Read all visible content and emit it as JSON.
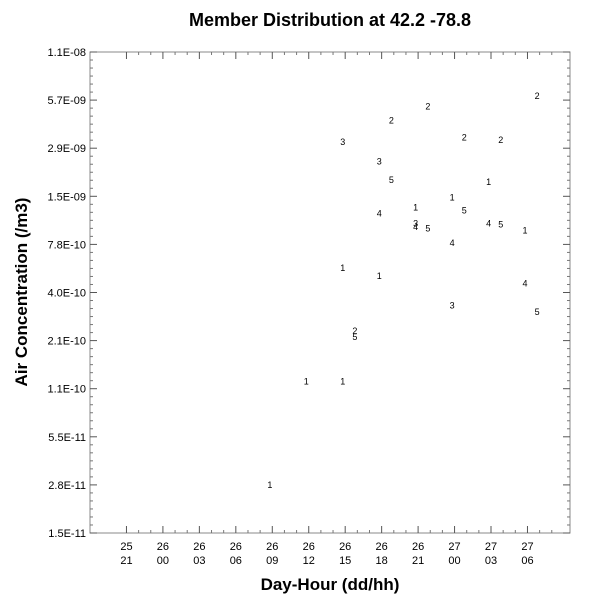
{
  "chart_data": {
    "type": "scatter",
    "title": "Member Distribution at  42.2  -78.8",
    "xlabel": "Day-Hour (dd/hh)",
    "ylabel": "Air Concentration (/m3)",
    "y_scale": "log",
    "ylim": [
      1.5e-11,
      1.1e-08
    ],
    "y_ticks": [
      "1.1E-08",
      "5.7E-09",
      "2.9E-09",
      "1.5E-09",
      "7.8E-10",
      "4.0E-10",
      "2.1E-10",
      "1.1E-10",
      "5.5E-11",
      "2.8E-11",
      "1.5E-11"
    ],
    "x_ticks": [
      {
        "day": "25",
        "hour": "21"
      },
      {
        "day": "26",
        "hour": "00"
      },
      {
        "day": "26",
        "hour": "03"
      },
      {
        "day": "26",
        "hour": "06"
      },
      {
        "day": "26",
        "hour": "09"
      },
      {
        "day": "26",
        "hour": "12"
      },
      {
        "day": "26",
        "hour": "15"
      },
      {
        "day": "26",
        "hour": "18"
      },
      {
        "day": "26",
        "hour": "21"
      },
      {
        "day": "27",
        "hour": "00"
      },
      {
        "day": "27",
        "hour": "03"
      },
      {
        "day": "27",
        "hour": "06"
      }
    ],
    "xlim_hours": [
      -3,
      36.5
    ],
    "grid": false,
    "points": [
      {
        "member": "1",
        "hour": 11.8,
        "value": 2.9e-11
      },
      {
        "member": "1",
        "hour": 14.8,
        "value": 1.2e-10
      },
      {
        "member": "1",
        "hour": 17.8,
        "value": 1.2e-10
      },
      {
        "member": "1",
        "hour": 17.8,
        "value": 5.7e-10
      },
      {
        "member": "1",
        "hour": 20.8,
        "value": 5.1e-10
      },
      {
        "member": "1",
        "hour": 23.8,
        "value": 1.3e-09
      },
      {
        "member": "1",
        "hour": 26.8,
        "value": 1.5e-09
      },
      {
        "member": "1",
        "hour": 29.8,
        "value": 1.85e-09
      },
      {
        "member": "1",
        "hour": 32.8,
        "value": 9.5e-10
      },
      {
        "member": "2",
        "hour": 18.8,
        "value": 2.4e-10
      },
      {
        "member": "2",
        "hour": 21.8,
        "value": 4.3e-09
      },
      {
        "member": "2",
        "hour": 24.8,
        "value": 5.2e-09
      },
      {
        "member": "2",
        "hour": 27.8,
        "value": 3.4e-09
      },
      {
        "member": "2",
        "hour": 30.8,
        "value": 3.3e-09
      },
      {
        "member": "2",
        "hour": 33.8,
        "value": 6e-09
      },
      {
        "member": "3",
        "hour": 17.8,
        "value": 3.2e-09
      },
      {
        "member": "3",
        "hour": 20.8,
        "value": 2.45e-09
      },
      {
        "member": "3",
        "hour": 23.8,
        "value": 1.05e-09
      },
      {
        "member": "3",
        "hour": 26.8,
        "value": 3.4e-10
      },
      {
        "member": "4",
        "hour": 20.8,
        "value": 1.2e-09
      },
      {
        "member": "4",
        "hour": 23.8,
        "value": 1e-09
      },
      {
        "member": "4",
        "hour": 26.8,
        "value": 8e-10
      },
      {
        "member": "4",
        "hour": 29.8,
        "value": 1.05e-09
      },
      {
        "member": "4",
        "hour": 32.8,
        "value": 4.6e-10
      },
      {
        "member": "5",
        "hour": 18.8,
        "value": 2.2e-10
      },
      {
        "member": "5",
        "hour": 21.8,
        "value": 1.9e-09
      },
      {
        "member": "5",
        "hour": 24.8,
        "value": 9.8e-10
      },
      {
        "member": "5",
        "hour": 27.8,
        "value": 1.25e-09
      },
      {
        "member": "5",
        "hour": 30.8,
        "value": 1.03e-09
      },
      {
        "member": "5",
        "hour": 33.8,
        "value": 3.1e-10
      }
    ]
  }
}
